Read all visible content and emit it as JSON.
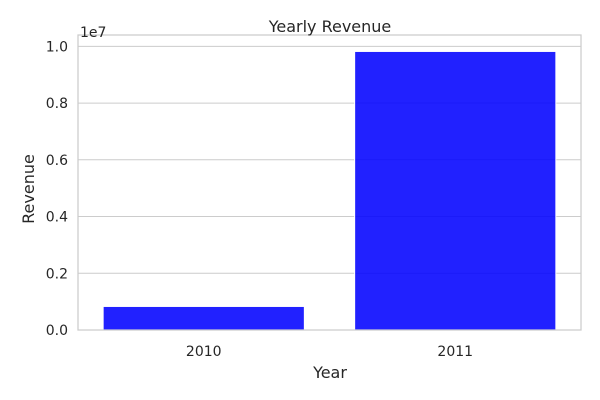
{
  "chart_data": {
    "type": "bar",
    "title": "Yearly Revenue",
    "xlabel": "Year",
    "ylabel": "Revenue",
    "categories": [
      "2010",
      "2011"
    ],
    "values": [
      830000,
      9820000
    ],
    "ylim": [
      0,
      10400000
    ],
    "yticks": [
      0,
      2000000,
      4000000,
      6000000,
      8000000,
      10000000
    ],
    "ytick_labels": [
      "0.0",
      "0.2",
      "0.4",
      "0.6",
      "0.8",
      "1.0"
    ],
    "y_offset_label": "1e7",
    "grid": true,
    "bar_color": "#0000ff",
    "grid_color": "#cccccc",
    "spine_color": "#cccccc"
  }
}
